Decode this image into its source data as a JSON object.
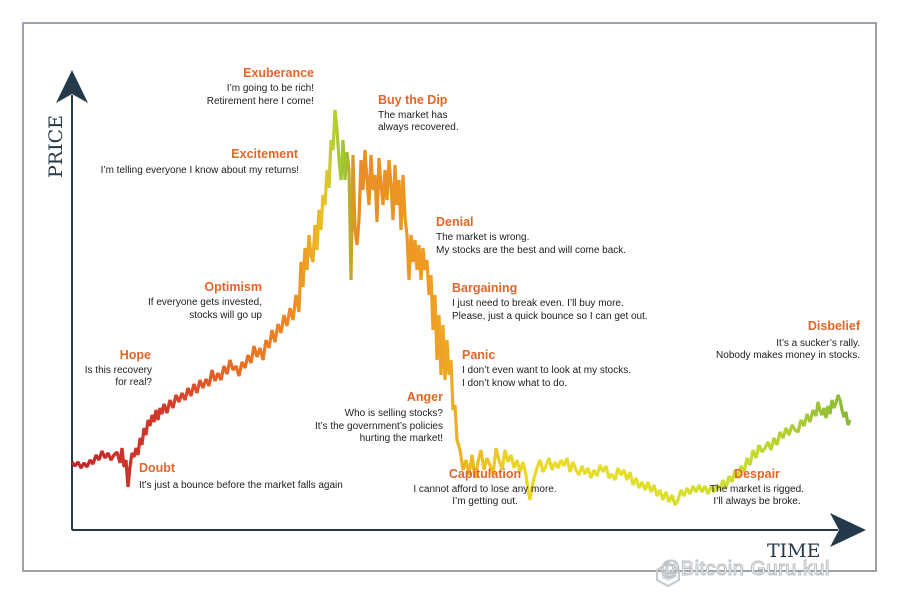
{
  "chart_data": {
    "type": "line",
    "xlabel": "TIME",
    "ylabel": "PRICE",
    "gradient_colors": [
      "#c0282a",
      "#e0562a",
      "#f08a22",
      "#e9cf28",
      "#d9e22b",
      "#7fb637"
    ],
    "series_points": [
      [
        0,
        432
      ],
      [
        3,
        436
      ],
      [
        6,
        432
      ],
      [
        9,
        438
      ],
      [
        12,
        433
      ],
      [
        15,
        437
      ],
      [
        18,
        430
      ],
      [
        21,
        434
      ],
      [
        24,
        425
      ],
      [
        27,
        430
      ],
      [
        30,
        421
      ],
      [
        33,
        428
      ],
      [
        36,
        423
      ],
      [
        39,
        430
      ],
      [
        42,
        425
      ],
      [
        45,
        422
      ],
      [
        48,
        433
      ],
      [
        50,
        418
      ],
      [
        52,
        437
      ],
      [
        54,
        430
      ],
      [
        56,
        457
      ],
      [
        58,
        437
      ],
      [
        60,
        423
      ],
      [
        62,
        427
      ],
      [
        64,
        418
      ],
      [
        66,
        425
      ],
      [
        68,
        408
      ],
      [
        70,
        415
      ],
      [
        72,
        398
      ],
      [
        74,
        405
      ],
      [
        76,
        390
      ],
      [
        78,
        396
      ],
      [
        80,
        385
      ],
      [
        82,
        392
      ],
      [
        84,
        380
      ],
      [
        86,
        390
      ],
      [
        88,
        378
      ],
      [
        90,
        384
      ],
      [
        92,
        374
      ],
      [
        95,
        383
      ],
      [
        98,
        370
      ],
      [
        101,
        378
      ],
      [
        104,
        365
      ],
      [
        107,
        372
      ],
      [
        110,
        363
      ],
      [
        113,
        370
      ],
      [
        116,
        358
      ],
      [
        119,
        366
      ],
      [
        122,
        354
      ],
      [
        125,
        363
      ],
      [
        128,
        350
      ],
      [
        131,
        358
      ],
      [
        134,
        349
      ],
      [
        137,
        356
      ],
      [
        140,
        340
      ],
      [
        143,
        351
      ],
      [
        146,
        343
      ],
      [
        149,
        350
      ],
      [
        152,
        336
      ],
      [
        155,
        344
      ],
      [
        158,
        330
      ],
      [
        161,
        340
      ],
      [
        164,
        336
      ],
      [
        167,
        346
      ],
      [
        170,
        332
      ],
      [
        173,
        338
      ],
      [
        176,
        325
      ],
      [
        179,
        333
      ],
      [
        182,
        316
      ],
      [
        185,
        327
      ],
      [
        188,
        318
      ],
      [
        191,
        330
      ],
      [
        194,
        310
      ],
      [
        197,
        318
      ],
      [
        200,
        300
      ],
      [
        203,
        312
      ],
      [
        206,
        294
      ],
      [
        209,
        303
      ],
      [
        212,
        285
      ],
      [
        215,
        296
      ],
      [
        218,
        278
      ],
      [
        221,
        290
      ],
      [
        224,
        265
      ],
      [
        227,
        282
      ],
      [
        229,
        232
      ],
      [
        231,
        257
      ],
      [
        233,
        218
      ],
      [
        235,
        240
      ],
      [
        237,
        205
      ],
      [
        239,
        225
      ],
      [
        241,
        232
      ],
      [
        243,
        195
      ],
      [
        245,
        220
      ],
      [
        247,
        180
      ],
      [
        249,
        200
      ],
      [
        251,
        165
      ],
      [
        253,
        175
      ],
      [
        255,
        140
      ],
      [
        257,
        158
      ],
      [
        259,
        110
      ],
      [
        261,
        120
      ],
      [
        263,
        80
      ],
      [
        265,
        100
      ],
      [
        267,
        130
      ],
      [
        269,
        150
      ],
      [
        271,
        110
      ],
      [
        273,
        150
      ],
      [
        275,
        122
      ],
      [
        277,
        140
      ],
      [
        279,
        250
      ],
      [
        281,
        125
      ],
      [
        283,
        200
      ],
      [
        285,
        215
      ],
      [
        287,
        190
      ],
      [
        289,
        130
      ],
      [
        291,
        160
      ],
      [
        293,
        120
      ],
      [
        295,
        150
      ],
      [
        297,
        175
      ],
      [
        299,
        125
      ],
      [
        301,
        160
      ],
      [
        303,
        145
      ],
      [
        305,
        192
      ],
      [
        307,
        128
      ],
      [
        309,
        155
      ],
      [
        311,
        175
      ],
      [
        313,
        140
      ],
      [
        315,
        170
      ],
      [
        317,
        130
      ],
      [
        319,
        155
      ],
      [
        321,
        190
      ],
      [
        323,
        135
      ],
      [
        325,
        175
      ],
      [
        327,
        150
      ],
      [
        329,
        200
      ],
      [
        331,
        145
      ],
      [
        333,
        188
      ],
      [
        335,
        205
      ],
      [
        337,
        250
      ],
      [
        339,
        205
      ],
      [
        341,
        232
      ],
      [
        343,
        210
      ],
      [
        345,
        240
      ],
      [
        347,
        215
      ],
      [
        349,
        250
      ],
      [
        351,
        218
      ],
      [
        353,
        240
      ],
      [
        355,
        230
      ],
      [
        357,
        265
      ],
      [
        359,
        245
      ],
      [
        361,
        300
      ],
      [
        363,
        265
      ],
      [
        365,
        330
      ],
      [
        367,
        285
      ],
      [
        369,
        345
      ],
      [
        371,
        295
      ],
      [
        373,
        350
      ],
      [
        375,
        310
      ],
      [
        377,
        345
      ],
      [
        379,
        330
      ],
      [
        381,
        380
      ],
      [
        383,
        375
      ],
      [
        385,
        410
      ],
      [
        388,
        420
      ],
      [
        391,
        440
      ],
      [
        394,
        430
      ],
      [
        397,
        445
      ],
      [
        400,
        425
      ],
      [
        403,
        448
      ],
      [
        406,
        432
      ],
      [
        409,
        420
      ],
      [
        412,
        440
      ],
      [
        415,
        428
      ],
      [
        418,
        435
      ],
      [
        421,
        445
      ],
      [
        424,
        418
      ],
      [
        427,
        430
      ],
      [
        430,
        440
      ],
      [
        433,
        420
      ],
      [
        436,
        432
      ],
      [
        439,
        425
      ],
      [
        442,
        438
      ],
      [
        445,
        430
      ],
      [
        448,
        442
      ],
      [
        451,
        432
      ],
      [
        454,
        445
      ],
      [
        456,
        460
      ],
      [
        458,
        470
      ],
      [
        460,
        458
      ],
      [
        462,
        448
      ],
      [
        465,
        438
      ],
      [
        468,
        430
      ],
      [
        471,
        442
      ],
      [
        474,
        436
      ],
      [
        477,
        428
      ],
      [
        480,
        440
      ],
      [
        483,
        432
      ],
      [
        486,
        438
      ],
      [
        489,
        430
      ],
      [
        492,
        436
      ],
      [
        495,
        428
      ],
      [
        498,
        442
      ],
      [
        501,
        432
      ],
      [
        504,
        440
      ],
      [
        507,
        445
      ],
      [
        510,
        436
      ],
      [
        513,
        444
      ],
      [
        516,
        438
      ],
      [
        519,
        448
      ],
      [
        522,
        440
      ],
      [
        525,
        446
      ],
      [
        528,
        435
      ],
      [
        531,
        442
      ],
      [
        534,
        436
      ],
      [
        537,
        448
      ],
      [
        540,
        444
      ],
      [
        543,
        450
      ],
      [
        546,
        438
      ],
      [
        549,
        445
      ],
      [
        552,
        440
      ],
      [
        555,
        450
      ],
      [
        558,
        442
      ],
      [
        561,
        455
      ],
      [
        564,
        448
      ],
      [
        567,
        458
      ],
      [
        570,
        452
      ],
      [
        573,
        460
      ],
      [
        576,
        452
      ],
      [
        579,
        462
      ],
      [
        582,
        455
      ],
      [
        585,
        466
      ],
      [
        588,
        460
      ],
      [
        591,
        470
      ],
      [
        594,
        462
      ],
      [
        597,
        472
      ],
      [
        600,
        465
      ],
      [
        603,
        475
      ],
      [
        606,
        470
      ],
      [
        609,
        460
      ],
      [
        612,
        466
      ],
      [
        615,
        458
      ],
      [
        618,
        464
      ],
      [
        621,
        456
      ],
      [
        624,
        462
      ],
      [
        627,
        455
      ],
      [
        630,
        462
      ],
      [
        633,
        456
      ],
      [
        636,
        464
      ],
      [
        639,
        456
      ],
      [
        642,
        462
      ],
      [
        645,
        455
      ],
      [
        648,
        460
      ],
      [
        651,
        450
      ],
      [
        654,
        458
      ],
      [
        657,
        446
      ],
      [
        660,
        452
      ],
      [
        663,
        440
      ],
      [
        666,
        448
      ],
      [
        669,
        436
      ],
      [
        672,
        442
      ],
      [
        675,
        428
      ],
      [
        678,
        435
      ],
      [
        681,
        420
      ],
      [
        684,
        428
      ],
      [
        687,
        415
      ],
      [
        690,
        422
      ],
      [
        693,
        418
      ],
      [
        696,
        412
      ],
      [
        699,
        420
      ],
      [
        702,
        408
      ],
      [
        705,
        415
      ],
      [
        708,
        402
      ],
      [
        711,
        408
      ],
      [
        714,
        398
      ],
      [
        717,
        405
      ],
      [
        720,
        395
      ],
      [
        723,
        400
      ],
      [
        726,
        402
      ],
      [
        729,
        390
      ],
      [
        732,
        396
      ],
      [
        735,
        384
      ],
      [
        738,
        392
      ],
      [
        741,
        380
      ],
      [
        744,
        386
      ],
      [
        746,
        372
      ],
      [
        748,
        380
      ],
      [
        750,
        385
      ],
      [
        752,
        378
      ],
      [
        754,
        388
      ],
      [
        756,
        376
      ],
      [
        758,
        384
      ],
      [
        760,
        370
      ],
      [
        762,
        378
      ],
      [
        764,
        373
      ],
      [
        766,
        365
      ],
      [
        768,
        370
      ],
      [
        770,
        380
      ],
      [
        772,
        387
      ],
      [
        774,
        382
      ],
      [
        776,
        395
      ],
      [
        778,
        390
      ]
    ]
  },
  "stages": [
    {
      "title": "Exuberance",
      "lines": [
        "I’m going to be rich!",
        "Retirement here I come!"
      ]
    },
    {
      "title": "Buy the Dip",
      "lines": [
        "The market has",
        "always recovered."
      ]
    },
    {
      "title": "Excitement",
      "lines": [
        "I’m telling everyone I know about my returns!"
      ]
    },
    {
      "title": "Denial",
      "lines": [
        "The market is wrong.",
        "My stocks are the best and will come back."
      ]
    },
    {
      "title": "Optimism",
      "lines": [
        "If everyone gets invested,",
        "stocks will go up"
      ]
    },
    {
      "title": "Bargaining",
      "lines": [
        "I just need to break even. I’ll buy more.",
        "Please, just a quick bounce so I can get out."
      ]
    },
    {
      "title": "Disbelief",
      "lines": [
        "It’s a sucker’s rally.",
        "Nobody makes money in stocks."
      ]
    },
    {
      "title": "Hope",
      "lines": [
        "Is this recovery",
        "for real?"
      ]
    },
    {
      "title": "Panic",
      "lines": [
        "I don’t even want to look at my stocks.",
        "I don’t know what to do."
      ]
    },
    {
      "title": "Anger",
      "lines": [
        "Who is selling stocks?",
        "It’s the government’s policies",
        "hurting the market!"
      ]
    },
    {
      "title": "Doubt",
      "lines": [
        "It’s just a bounce before the market falls again"
      ]
    },
    {
      "title": "Capitulation",
      "lines": [
        "I cannot afford to lose any more.",
        "I’m getting out."
      ]
    },
    {
      "title": "Despair",
      "lines": [
        "The market is rigged.",
        "I’ll always be broke."
      ]
    }
  ],
  "watermark": {
    "text": "@Bitcoin Guru.kul"
  },
  "colors": {
    "stage_title": "#e2662a",
    "axis": "#24394a",
    "frame": "#9ba3a8"
  }
}
